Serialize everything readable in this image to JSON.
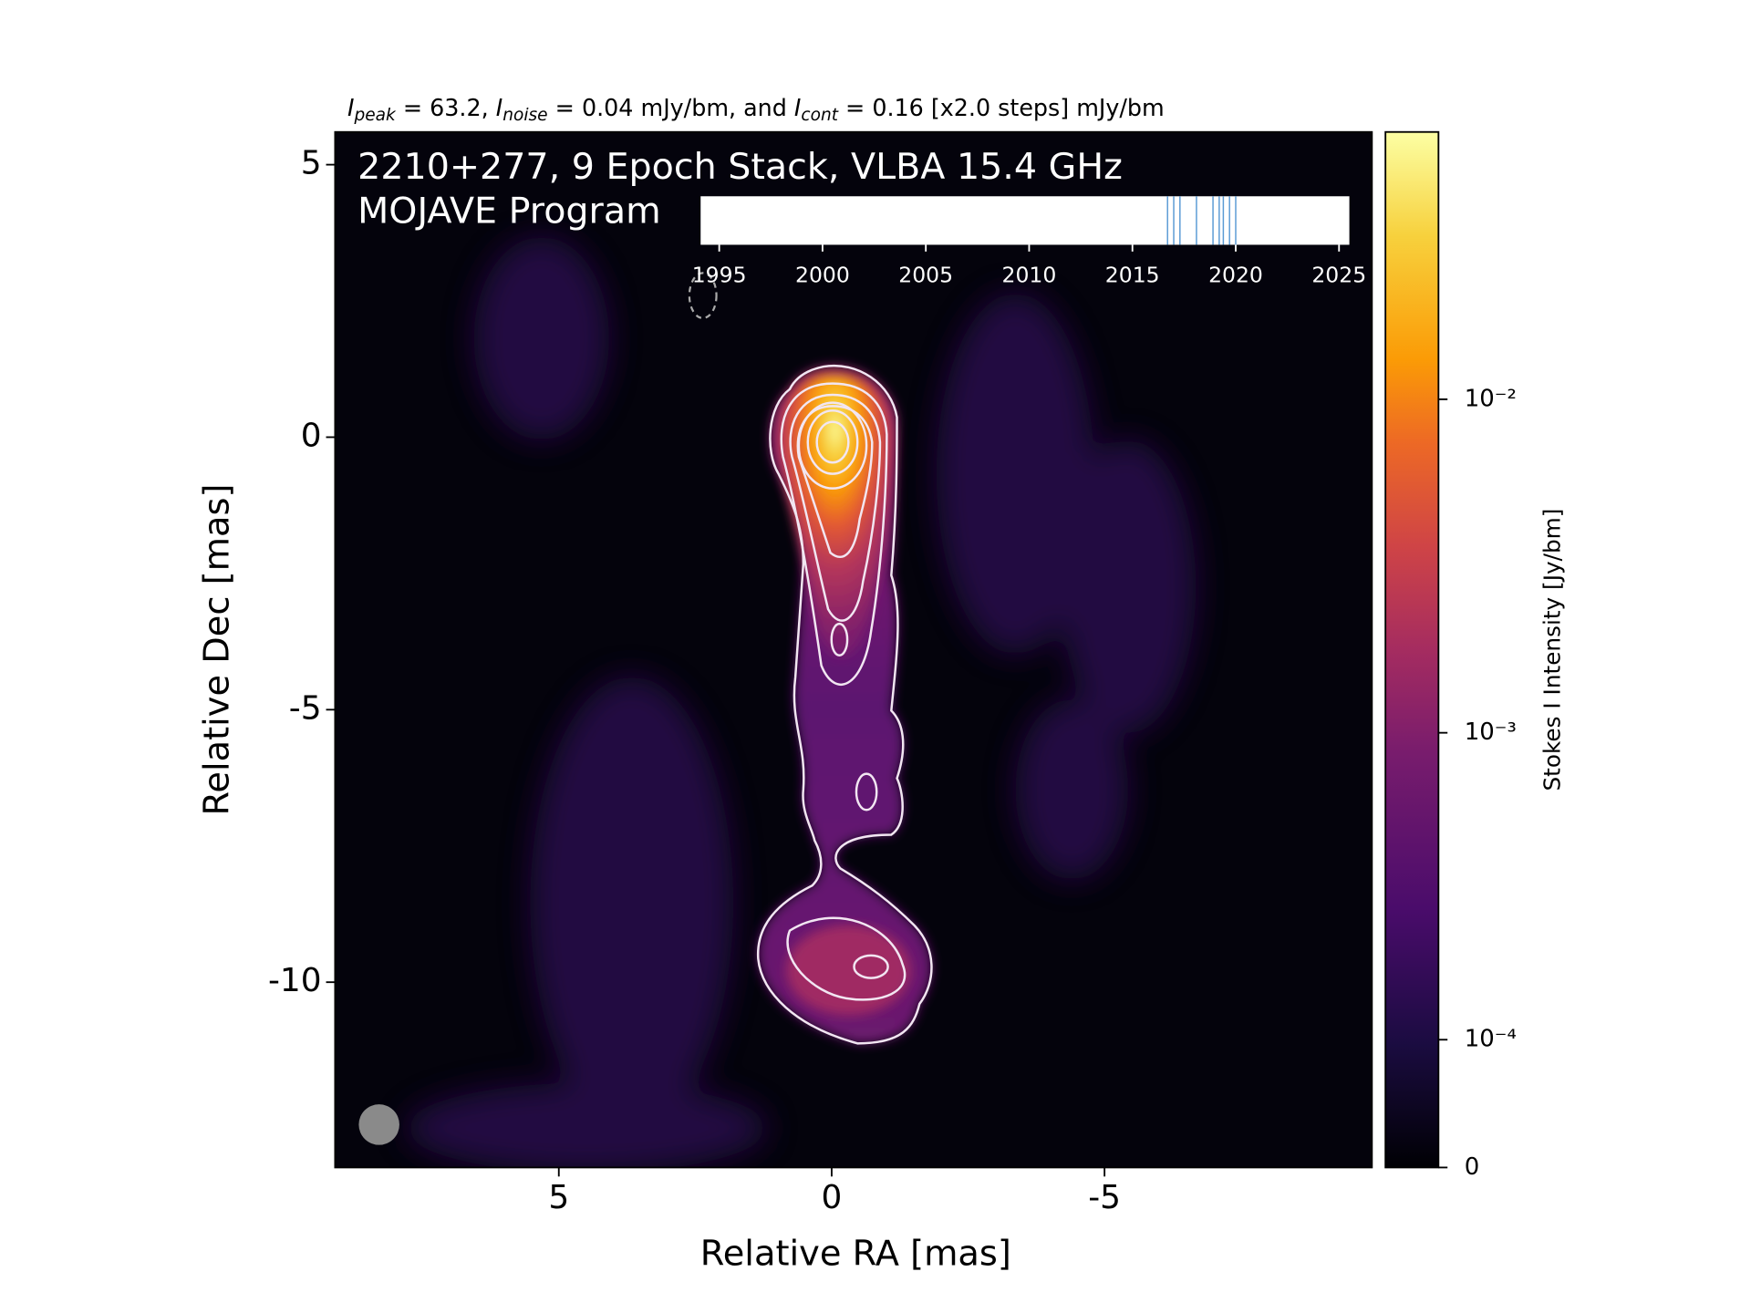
{
  "chart_data": {
    "type": "image",
    "subtitle": [
      "I",
      "peak",
      " = 63.2, ",
      "I",
      "noise",
      " = 0.04 mJy/bm, and ",
      "I",
      "cont",
      " = 0.16 [x2.0 steps] mJy/bm"
    ],
    "annotations": [
      "2210+277, 9 Epoch Stack, VLBA 15.4 GHz",
      "MOJAVE Program"
    ],
    "xlabel": "Relative RA [mas]",
    "ylabel": "Relative Dec [mas]",
    "xlim": [
      9.1,
      -9.9
    ],
    "ylim": [
      -13.4,
      5.6
    ],
    "xticks": [
      5,
      0,
      -5
    ],
    "yticks": [
      5,
      0,
      -5,
      -10
    ],
    "colorbar": {
      "label": "Stokes I Intensity [Jy/bm]",
      "clim": [
        0,
        0.0632
      ],
      "ticks": [
        0,
        {
          "value": 0.0001,
          "label": "10⁻⁴"
        },
        {
          "value": 0.001,
          "label": "10⁻³"
        },
        {
          "value": 0.01,
          "label": "10⁻²"
        }
      ]
    },
    "inset": {
      "type": "epochs",
      "color": "#5b9bd5",
      "xlim": [
        1994.1,
        2025.5
      ],
      "xticks": [
        1995,
        2000,
        2005,
        2010,
        2015,
        2020,
        2025
      ],
      "x": [
        2016.7,
        2017.0,
        2017.3,
        2018.1,
        2018.9,
        2019.2,
        2019.4,
        2019.7,
        2020.0
      ]
    }
  }
}
